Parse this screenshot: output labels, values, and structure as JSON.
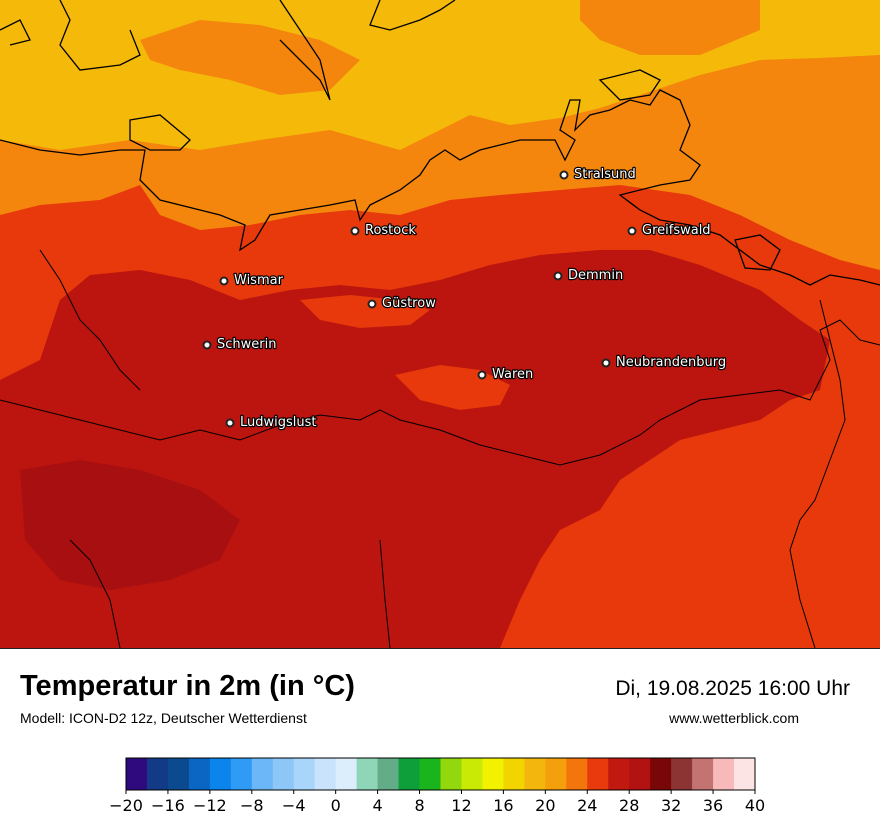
{
  "title": "Temperatur in 2m (in °C)",
  "model": "Modell: ICON-D2 12z, Deutscher Wetterdienst",
  "datetime": "Di, 19.08.2025 16:00 Uhr",
  "website": "www.wetterblick.com",
  "cities": [
    {
      "name": "Stralsund"
    },
    {
      "name": "Rostock"
    },
    {
      "name": "Greifswald"
    },
    {
      "name": "Wismar"
    },
    {
      "name": "Demmin"
    },
    {
      "name": "Güstrow"
    },
    {
      "name": "Schwerin"
    },
    {
      "name": "Neubrandenburg"
    },
    {
      "name": "Waren"
    },
    {
      "name": "Ludwigslust"
    }
  ],
  "colorbar": {
    "min": -20,
    "max": 40,
    "step": 2,
    "tick_labels": [
      "−20",
      "−16",
      "−12",
      "−8",
      "−4",
      "0",
      "4",
      "8",
      "12",
      "16",
      "20",
      "24",
      "28",
      "32",
      "36",
      "40"
    ],
    "colors": [
      "#2e0a7e",
      "#133a86",
      "#0b4a8e",
      "#0a66c2",
      "#0b85ec",
      "#2f9bf4",
      "#6bb7f7",
      "#8dc7f8",
      "#aad5fa",
      "#c8e3fb",
      "#dcedfc",
      "#8fd6b9",
      "#62ac87",
      "#0f9f3a",
      "#1ab51c",
      "#92d80c",
      "#c8ea04",
      "#f2f200",
      "#f2d400",
      "#f3b60d",
      "#f3a00c",
      "#f2760b",
      "#e83a0d",
      "#c1190f",
      "#b31212",
      "#7a0707",
      "#8c3434",
      "#c47373",
      "#f7b9b9",
      "#fde4e4"
    ]
  },
  "map_fill": {
    "cool": "#f5b90a",
    "mid": "#f4860e",
    "warm": "#e7390b",
    "hot": "#bc140f",
    "hottest": "#a80f10"
  }
}
